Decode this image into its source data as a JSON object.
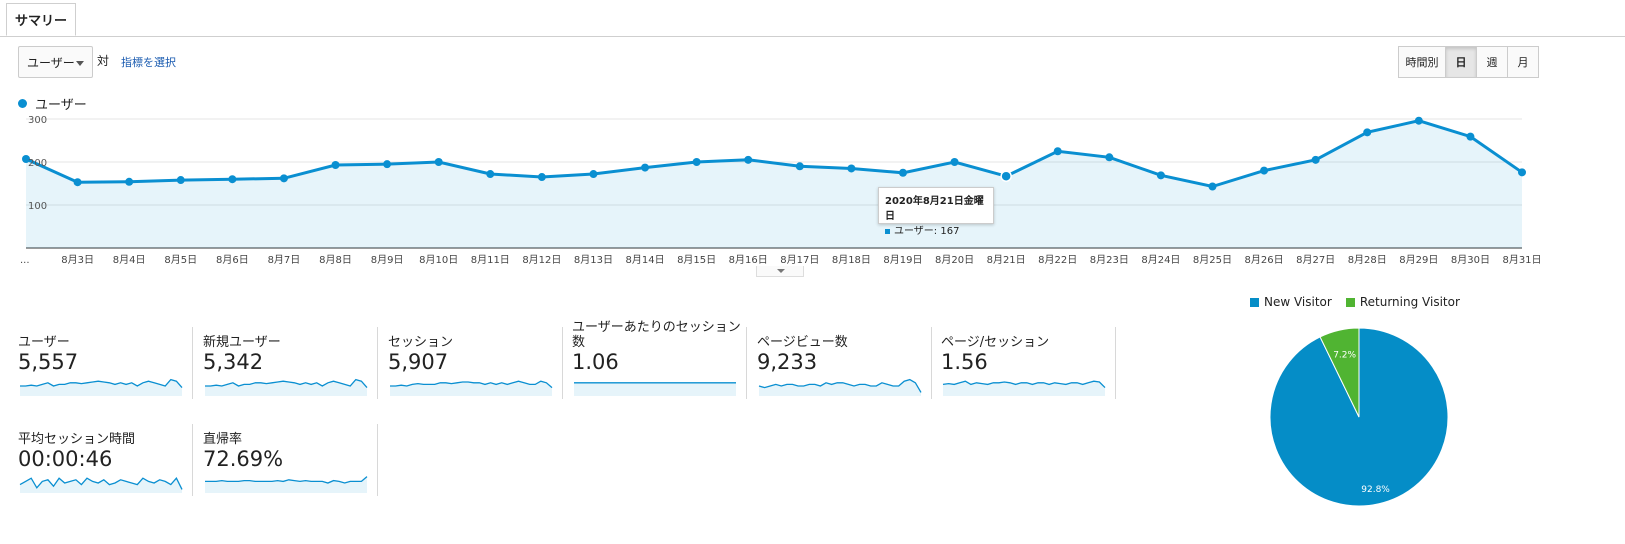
{
  "tabs": [
    {
      "label": "サマリー"
    }
  ],
  "controls": {
    "metric_dropdown": "ユーザー",
    "vs_label": "対",
    "select_metric_link": "指標を選択",
    "granularity": [
      "時間別",
      "日",
      "週",
      "月"
    ],
    "granularity_selected": "日"
  },
  "chart_legend": "ユーザー",
  "colors": {
    "series": "#0a8fd1",
    "new_visitor": "#058dc7",
    "returning_visitor": "#50b432"
  },
  "chart_data": {
    "type": "area",
    "series": [
      {
        "name": "ユーザー",
        "values": [
          207,
          153,
          154,
          158,
          160,
          162,
          193,
          195,
          200,
          172,
          165,
          172,
          187,
          200,
          205,
          190,
          185,
          175,
          200,
          167,
          225,
          211,
          169,
          143,
          180,
          205,
          269,
          296,
          259,
          176
        ]
      }
    ],
    "x": [
      "...",
      "8月3日",
      "8月4日",
      "8月5日",
      "8月6日",
      "8月7日",
      "8月8日",
      "8月9日",
      "8月10日",
      "8月11日",
      "8月12日",
      "8月13日",
      "8月14日",
      "8月15日",
      "8月16日",
      "8月17日",
      "8月18日",
      "8月19日",
      "8月20日",
      "8月21日",
      "8月22日",
      "8月23日",
      "8月24日",
      "8月25日",
      "8月26日",
      "8月27日",
      "8月28日",
      "8月29日",
      "8月30日",
      "8月31日"
    ],
    "yticks": [
      "100",
      "200",
      "300"
    ],
    "ylim": [
      0,
      300
    ]
  },
  "tooltip": {
    "title": "2020年8月21日金曜日",
    "line": "ユーザー: 167"
  },
  "metrics": [
    {
      "label": "ユーザー",
      "value": "5,557"
    },
    {
      "label": "新規ユーザー",
      "value": "5,342"
    },
    {
      "label": "セッション",
      "value": "5,907"
    },
    {
      "label": "ユーザーあたりのセッション数",
      "value": "1.06"
    },
    {
      "label": "ページビュー数",
      "value": "9,233"
    },
    {
      "label": "ページ/セッション",
      "value": "1.56"
    },
    {
      "label": "平均セッション時間",
      "value": "00:00:46"
    },
    {
      "label": "直帰率",
      "value": "72.69%"
    }
  ],
  "pie": {
    "legend": [
      "New Visitor",
      "Returning Visitor"
    ],
    "values": [
      92.8,
      7.2
    ],
    "labels": [
      "92.8%",
      "7.2%"
    ]
  }
}
